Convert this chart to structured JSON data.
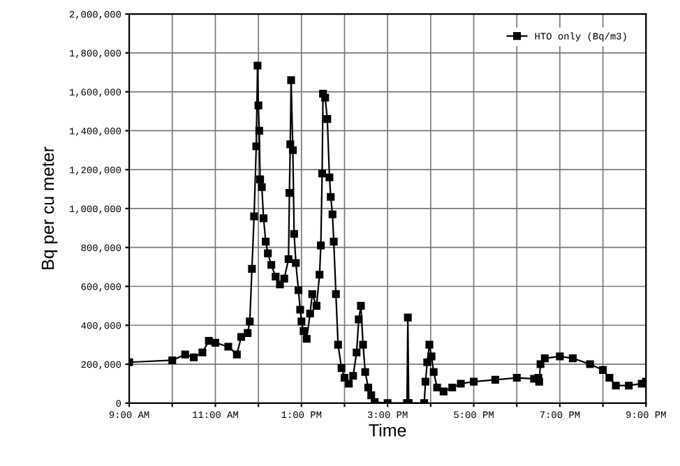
{
  "chart_data": {
    "type": "line",
    "xlabel": "Time",
    "ylabel": "Bq per cu meter",
    "x": [
      9.0,
      10.0,
      10.3,
      10.5,
      10.7,
      10.85,
      11.0,
      11.3,
      11.5,
      11.6,
      11.75,
      11.8,
      11.85,
      11.9,
      11.95,
      11.98,
      12.0,
      12.02,
      12.04,
      12.08,
      12.12,
      12.17,
      12.22,
      12.3,
      12.4,
      12.5,
      12.6,
      12.7,
      12.72,
      12.74,
      12.76,
      12.8,
      12.83,
      12.87,
      12.93,
      12.97,
      13.0,
      13.05,
      13.12,
      13.2,
      13.25,
      13.35,
      13.42,
      13.45,
      13.48,
      13.5,
      13.55,
      13.6,
      13.65,
      13.68,
      13.72,
      13.75,
      13.8,
      13.85,
      13.93,
      14.0,
      14.1,
      14.2,
      14.28,
      14.33,
      14.38,
      14.43,
      14.48,
      14.55,
      14.62,
      14.7,
      15.0,
      15.45,
      15.47,
      15.49,
      15.85,
      15.88,
      15.92,
      15.97,
      16.02,
      16.07,
      16.15,
      16.3,
      16.5,
      16.7,
      17.0,
      17.5,
      18.0,
      18.4,
      18.5,
      18.52,
      18.55,
      18.65,
      19.0,
      19.3,
      19.7,
      20.0,
      20.15,
      20.3,
      20.6,
      20.9,
      21.0
    ],
    "series": [
      {
        "name": "HTO only (Bq/m3)",
        "color": "#000000",
        "values": [
          210000,
          220000,
          250000,
          235000,
          260000,
          320000,
          310000,
          290000,
          250000,
          340000,
          360000,
          420000,
          690000,
          960000,
          1320000,
          1735000,
          1530000,
          1400000,
          1150000,
          1110000,
          950000,
          830000,
          770000,
          710000,
          650000,
          610000,
          640000,
          740000,
          1080000,
          1330000,
          1660000,
          1300000,
          870000,
          720000,
          580000,
          480000,
          420000,
          370000,
          330000,
          460000,
          560000,
          500000,
          660000,
          810000,
          1180000,
          1590000,
          1570000,
          1460000,
          1160000,
          1060000,
          970000,
          830000,
          560000,
          300000,
          180000,
          130000,
          100000,
          140000,
          260000,
          430000,
          500000,
          300000,
          160000,
          80000,
          40000,
          5000,
          0,
          0,
          440000,
          0,
          0,
          110000,
          210000,
          300000,
          240000,
          160000,
          80000,
          60000,
          80000,
          100000,
          110000,
          120000,
          130000,
          125000,
          130000,
          110000,
          200000,
          230000,
          240000,
          230000,
          200000,
          170000,
          130000,
          90000,
          90000,
          100000,
          110000
        ]
      }
    ],
    "xlim": [
      9,
      21
    ],
    "ylim": [
      0,
      2000000
    ],
    "xticks": [
      {
        "value": 9,
        "label": "9:00 AM"
      },
      {
        "value": 10,
        "label": null
      },
      {
        "value": 11,
        "label": "11:00 AM"
      },
      {
        "value": 12,
        "label": null
      },
      {
        "value": 13,
        "label": "1:00 PM"
      },
      {
        "value": 14,
        "label": null
      },
      {
        "value": 15,
        "label": "3:00 PM"
      },
      {
        "value": 16,
        "label": null
      },
      {
        "value": 17,
        "label": "5:00 PM"
      },
      {
        "value": 18,
        "label": null
      },
      {
        "value": 19,
        "label": "7:00 PM"
      },
      {
        "value": 20,
        "label": null
      },
      {
        "value": 21,
        "label": "9:00 PM"
      }
    ],
    "yticks": [
      {
        "value": 0,
        "label": "0"
      },
      {
        "value": 200000,
        "label": "200,000"
      },
      {
        "value": 400000,
        "label": "400,000"
      },
      {
        "value": 600000,
        "label": "600,000"
      },
      {
        "value": 800000,
        "label": "800,000"
      },
      {
        "value": 1000000,
        "label": "1,000,000"
      },
      {
        "value": 1200000,
        "label": "1,200,000"
      },
      {
        "value": 1400000,
        "label": "1,400,000"
      },
      {
        "value": 1600000,
        "label": "1,600,000"
      },
      {
        "value": 1800000,
        "label": "1,800,000"
      },
      {
        "value": 2000000,
        "label": "2,000,000"
      }
    ],
    "grid": true,
    "legend": "top right",
    "marker": "square",
    "line_style": "solid"
  }
}
